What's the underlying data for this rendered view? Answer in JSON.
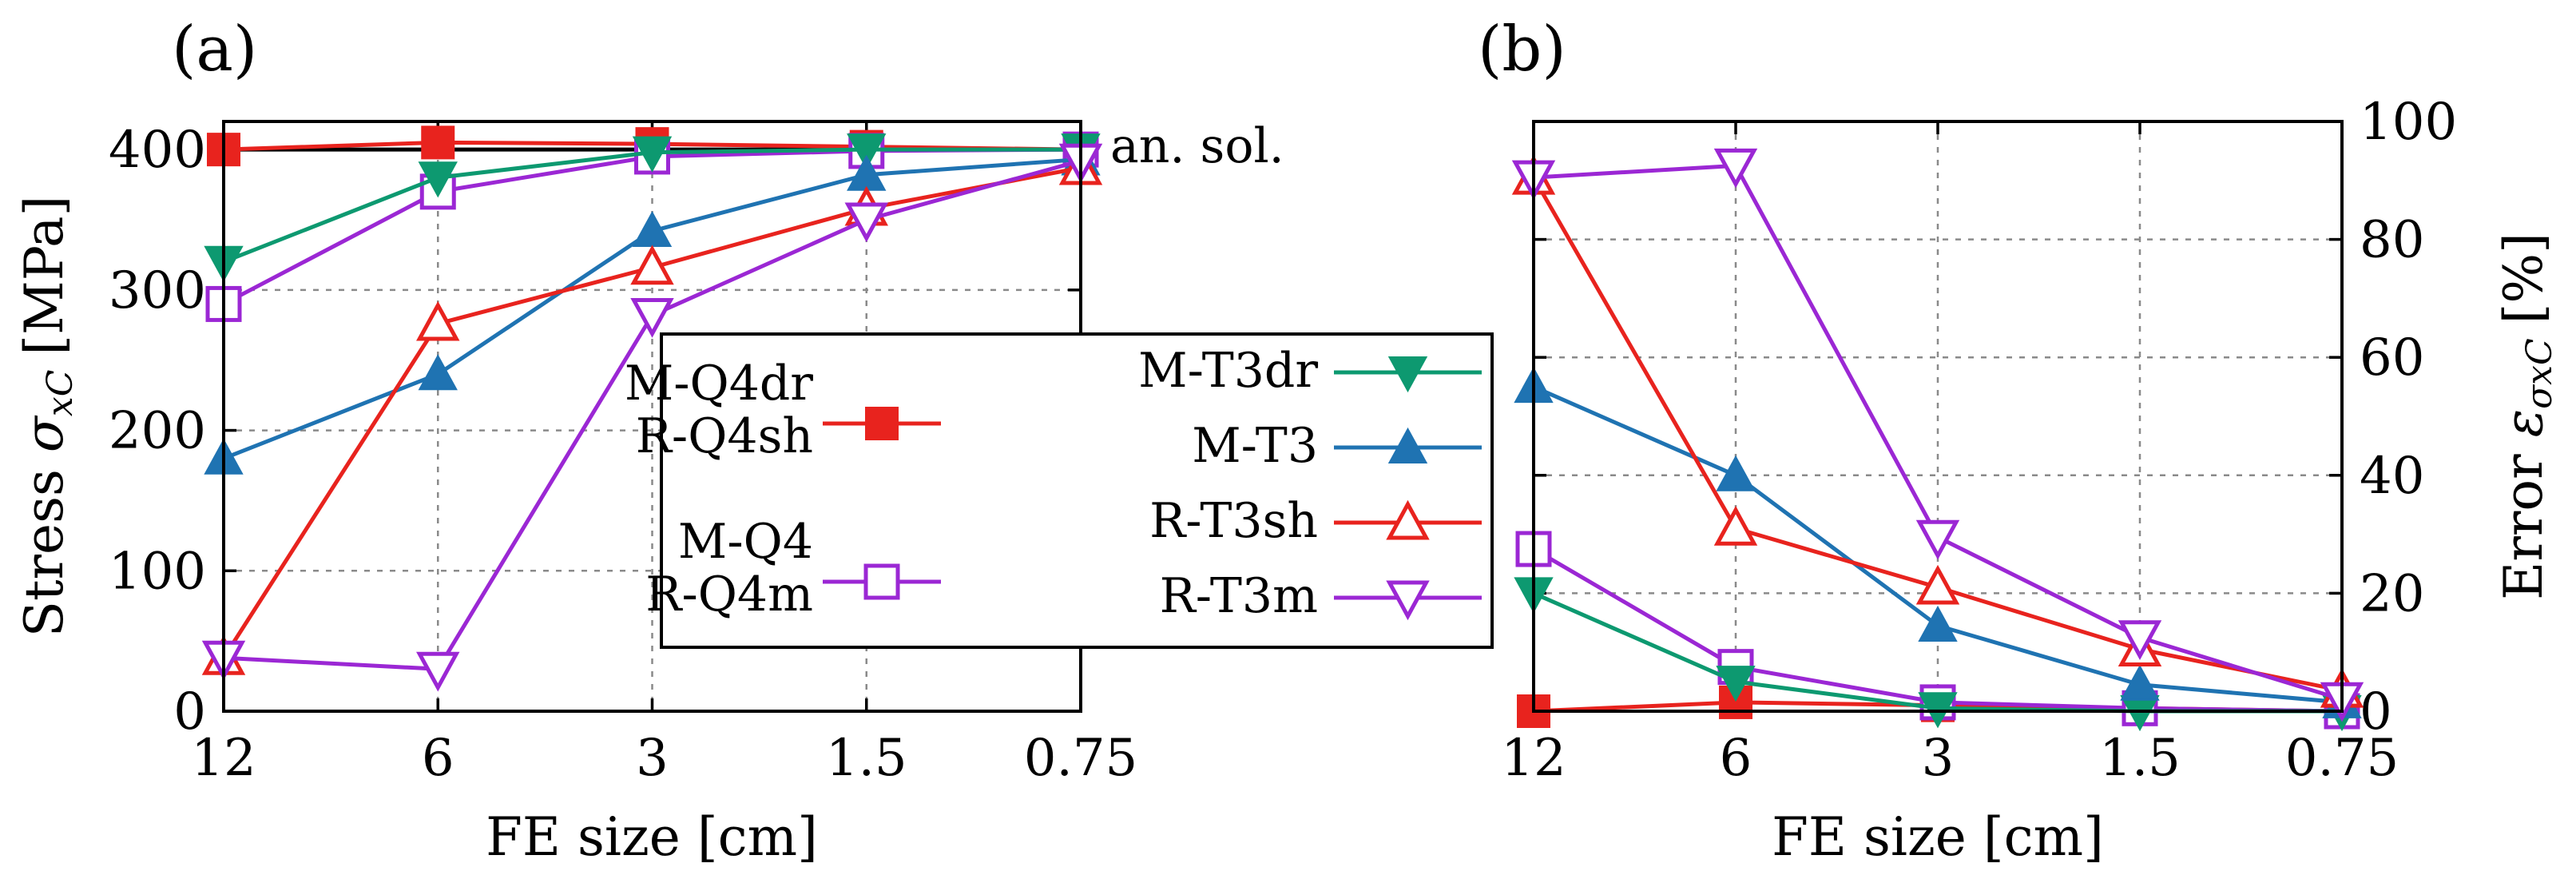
{
  "chart_data": [
    {
      "id": "a",
      "panel_label": "(a)",
      "type": "line",
      "xlabel": "FE size [cm]",
      "ylabel_main": "Stress ",
      "ylabel_symbol": "σ",
      "ylabel_sub": "xC",
      "ylabel_unit": "[MPa]",
      "categories": [
        "12",
        "6",
        "3",
        "1.5",
        "0.75"
      ],
      "ylim": [
        0,
        420
      ],
      "yticks": [
        0,
        100,
        200,
        300,
        400
      ],
      "grid": true,
      "reference": {
        "label": "an. sol.",
        "value": 400
      },
      "series": [
        {
          "name": "M-Q4dr / R-Q4sh",
          "color": "#e8231e",
          "marker": "square-filled",
          "values": [
            400,
            405,
            404,
            402,
            400
          ]
        },
        {
          "name": "M-Q4 / R-Q4m",
          "color": "#9b27d4",
          "marker": "square-open",
          "values": [
            290,
            370,
            395,
            399,
            400
          ]
        },
        {
          "name": "M-T3dr",
          "color": "#0d9970",
          "marker": "triangle-down-filled",
          "values": [
            320,
            380,
            398,
            400,
            400
          ]
        },
        {
          "name": "M-T3",
          "color": "#1f73b2",
          "marker": "triangle-up-filled",
          "values": [
            180,
            240,
            342,
            382,
            393
          ]
        },
        {
          "name": "R-T3sh",
          "color": "#e8231e",
          "marker": "triangle-up-open",
          "values": [
            38,
            276,
            316,
            358,
            387
          ]
        },
        {
          "name": "R-T3m",
          "color": "#9b27d4",
          "marker": "triangle-down-open",
          "values": [
            38,
            30,
            282,
            350,
            392
          ]
        }
      ],
      "legend": {
        "placement": "center-right",
        "entries": [
          {
            "line1": "M-Q4dr",
            "line2": "R-Q4sh",
            "series": 0
          },
          {
            "line1": "M-Q4",
            "line2": "R-Q4m",
            "series": 1
          },
          {
            "line1": "M-T3dr",
            "series": 2
          },
          {
            "line1": "M-T3",
            "series": 3
          },
          {
            "line1": "R-T3sh",
            "series": 4
          },
          {
            "line1": "R-T3m",
            "series": 5
          }
        ]
      }
    },
    {
      "id": "b",
      "panel_label": "(b)",
      "type": "line",
      "xlabel": "FE size [cm]",
      "ylabel_main": "Error ",
      "ylabel_symbol": "ε",
      "ylabel_sub": "σxC",
      "ylabel_unit": "[%]",
      "categories": [
        "12",
        "6",
        "3",
        "1.5",
        "0.75"
      ],
      "ylim": [
        0,
        100
      ],
      "yticks": [
        0,
        20,
        40,
        60,
        80,
        100
      ],
      "grid": true,
      "series": [
        {
          "name": "M-Q4dr / R-Q4sh",
          "color": "#e8231e",
          "marker": "square-filled",
          "values": [
            0,
            1.5,
            1,
            0.5,
            0
          ]
        },
        {
          "name": "M-Q4 / R-Q4m",
          "color": "#9b27d4",
          "marker": "square-open",
          "values": [
            27.5,
            7.5,
            1.5,
            0.5,
            0
          ]
        },
        {
          "name": "M-T3dr",
          "color": "#0d9970",
          "marker": "triangle-down-filled",
          "values": [
            20,
            5,
            0.5,
            0,
            0
          ]
        },
        {
          "name": "M-T3",
          "color": "#1f73b2",
          "marker": "triangle-up-filled",
          "values": [
            55,
            40,
            14.5,
            4.5,
            1.5
          ]
        },
        {
          "name": "R-T3sh",
          "color": "#e8231e",
          "marker": "triangle-up-open",
          "values": [
            90.5,
            31,
            21,
            10.5,
            3.5
          ]
        },
        {
          "name": "R-T3m",
          "color": "#9b27d4",
          "marker": "triangle-down-open",
          "values": [
            90.5,
            92.5,
            29.5,
            12.5,
            2
          ]
        }
      ]
    }
  ]
}
